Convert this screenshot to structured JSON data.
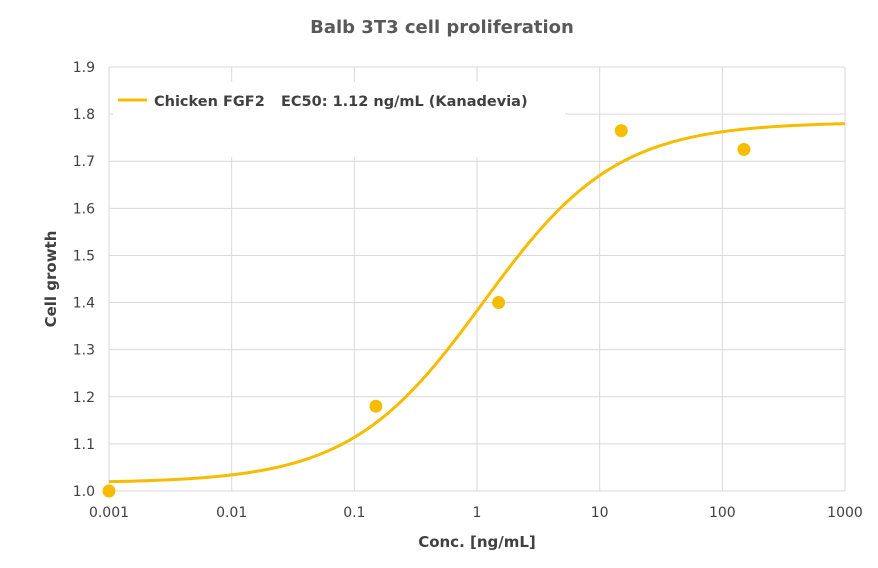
{
  "chart_data": {
    "type": "scatter",
    "title": "Balb 3T3 cell proliferation",
    "xlabel": "Conc. [ng/mL]",
    "ylabel": "Cell growth",
    "x_scale": "log",
    "xlim": [
      0.001,
      1000
    ],
    "ylim": [
      1.0,
      1.9
    ],
    "x_ticks": [
      {
        "value": 0.001,
        "label": "0.001"
      },
      {
        "value": 0.01,
        "label": "0.01"
      },
      {
        "value": 0.1,
        "label": "0.1"
      },
      {
        "value": 1,
        "label": "1"
      },
      {
        "value": 10,
        "label": "10"
      },
      {
        "value": 100,
        "label": "100"
      },
      {
        "value": 1000,
        "label": "1000"
      }
    ],
    "y_ticks": [
      {
        "value": 1.0,
        "label": "1.0"
      },
      {
        "value": 1.1,
        "label": "1.1"
      },
      {
        "value": 1.2,
        "label": "1.2"
      },
      {
        "value": 1.3,
        "label": "1.3"
      },
      {
        "value": 1.4,
        "label": "1.4"
      },
      {
        "value": 1.5,
        "label": "1.5"
      },
      {
        "value": 1.6,
        "label": "1.6"
      },
      {
        "value": 1.7,
        "label": "1.7"
      },
      {
        "value": 1.8,
        "label": "1.8"
      },
      {
        "value": 1.9,
        "label": "1.9"
      }
    ],
    "grid": true,
    "legend_position": "top-left",
    "series": [
      {
        "name": "Chicken FGF2",
        "color": "#f5bc00",
        "points": [
          {
            "x": 0.001,
            "y": 1.0
          },
          {
            "x": 0.15,
            "y": 1.18
          },
          {
            "x": 1.5,
            "y": 1.4
          },
          {
            "x": 15,
            "y": 1.765
          },
          {
            "x": 150,
            "y": 1.725
          }
        ],
        "fit": {
          "model": "4PL",
          "bottom": 1.017,
          "top": 1.783,
          "ec50": 1.12,
          "hill": 0.8
        }
      }
    ],
    "annotations": [
      {
        "text": "EC50: 1.12 ng/mL  (Kanadevia)"
      }
    ]
  }
}
